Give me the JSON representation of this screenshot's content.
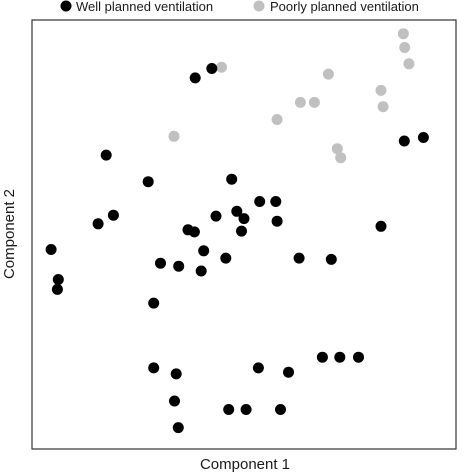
{
  "chart_data": {
    "type": "scatter",
    "title": "",
    "xlabel": "Component 1",
    "ylabel": "Component 2",
    "x_ticks": "none",
    "y_ticks": "none",
    "grid": false,
    "legend_placement": "top",
    "xlim": [
      0,
      100
    ],
    "ylim": [
      0,
      100
    ],
    "series": [
      {
        "name": "Well planned ventilation",
        "color": "#000000",
        "points": [
          [
            4.5,
            46.5
          ],
          [
            6.2,
            39.5
          ],
          [
            6.0,
            37.2
          ],
          [
            17.5,
            68.5
          ],
          [
            15.6,
            52.5
          ],
          [
            19.2,
            54.5
          ],
          [
            27.4,
            62.3
          ],
          [
            30.3,
            43.3
          ],
          [
            38.5,
            86.5
          ],
          [
            42.4,
            88.7
          ],
          [
            36.8,
            51.1
          ],
          [
            38.3,
            50.6
          ],
          [
            34.6,
            42.6
          ],
          [
            39.9,
            41.5
          ],
          [
            43.4,
            54.3
          ],
          [
            40.5,
            46.2
          ],
          [
            47.1,
            62.9
          ],
          [
            45.7,
            44.5
          ],
          [
            48.3,
            55.4
          ],
          [
            50.0,
            53.7
          ],
          [
            49.4,
            50.8
          ],
          [
            53.7,
            57.7
          ],
          [
            57.8,
            53.1
          ],
          [
            57.5,
            57.7
          ],
          [
            63.0,
            44.5
          ],
          [
            70.6,
            44.2
          ],
          [
            82.3,
            51.9
          ],
          [
            87.8,
            71.8
          ],
          [
            92.3,
            72.6
          ],
          [
            28.7,
            34.0
          ],
          [
            28.7,
            18.9
          ],
          [
            34.0,
            17.5
          ],
          [
            33.6,
            11.2
          ],
          [
            34.5,
            5.0
          ],
          [
            46.4,
            9.2
          ],
          [
            50.5,
            9.2
          ],
          [
            53.4,
            18.9
          ],
          [
            58.6,
            9.2
          ],
          [
            60.5,
            17.9
          ],
          [
            68.5,
            21.4
          ],
          [
            72.6,
            21.4
          ],
          [
            77.0,
            21.4
          ]
        ]
      },
      {
        "name": "Poorly planned ventilation",
        "color": "#c0c0c0",
        "points": [
          [
            44.7,
            89.0
          ],
          [
            33.5,
            72.9
          ],
          [
            57.8,
            76.8
          ],
          [
            63.3,
            80.8
          ],
          [
            66.6,
            80.8
          ],
          [
            69.9,
            87.4
          ],
          [
            72.0,
            70.0
          ],
          [
            72.8,
            67.9
          ],
          [
            82.3,
            83.6
          ],
          [
            82.8,
            79.8
          ],
          [
            87.6,
            96.8
          ],
          [
            87.9,
            93.6
          ],
          [
            88.9,
            89.8
          ]
        ]
      }
    ]
  }
}
